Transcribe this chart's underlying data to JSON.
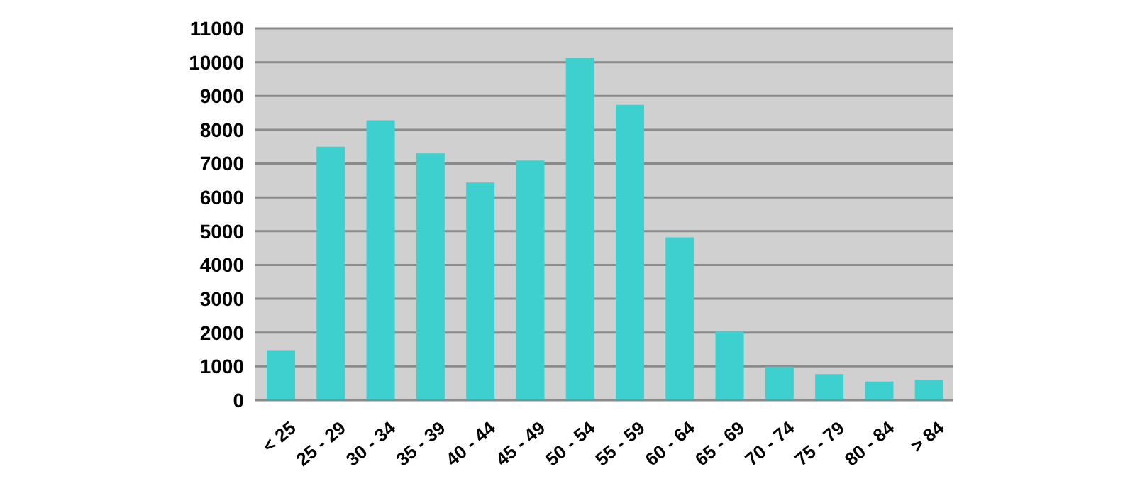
{
  "chart_data": {
    "type": "bar",
    "categories": [
      "< 25",
      "25 - 29",
      "30 - 34",
      "35 - 39",
      "40 - 44",
      "45 - 49",
      "50 - 54",
      "55 - 59",
      "60 - 64",
      "65 - 69",
      "70 - 74",
      "75 - 79",
      "80 - 84",
      "> 84"
    ],
    "values": [
      1480,
      7500,
      8280,
      7300,
      6440,
      7090,
      10120,
      8740,
      4820,
      2040,
      990,
      770,
      550,
      600
    ],
    "color": "#3ecfcf",
    "ylim": [
      0,
      11000
    ],
    "yticks": [
      0,
      1000,
      2000,
      3000,
      4000,
      5000,
      6000,
      7000,
      8000,
      9000,
      10000,
      11000
    ],
    "grid": "y"
  }
}
